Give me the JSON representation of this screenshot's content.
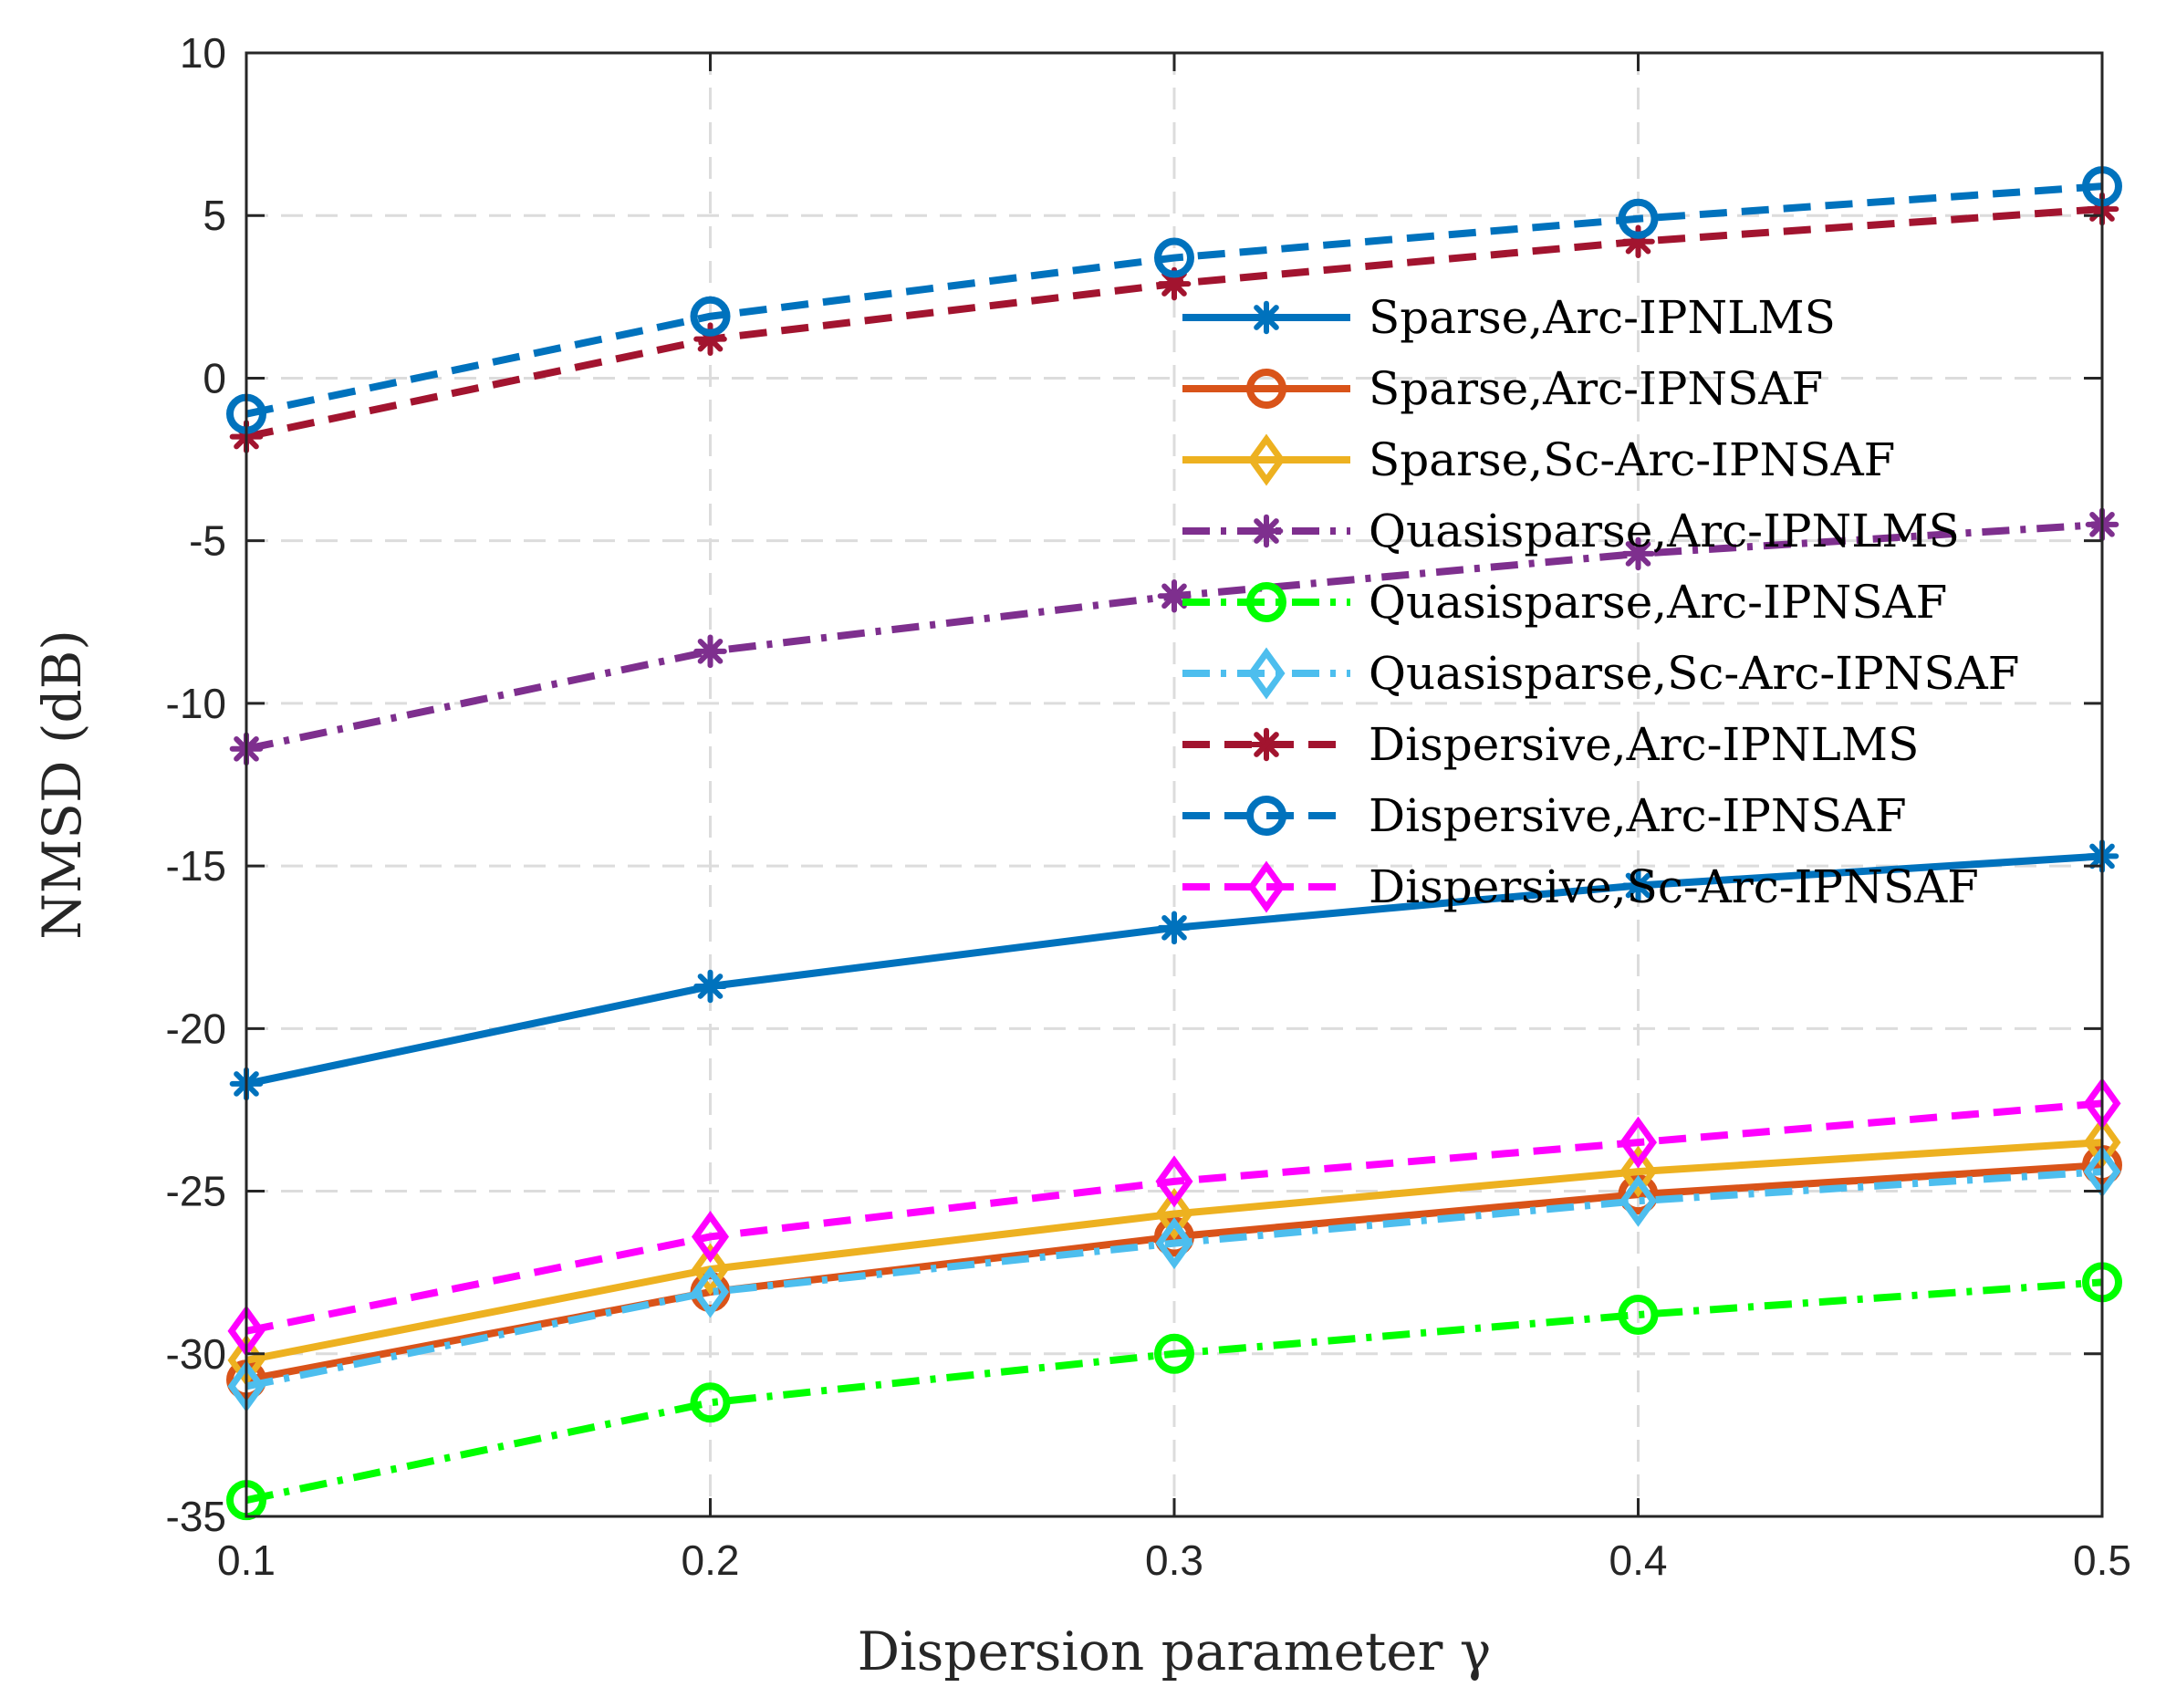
{
  "chart_data": {
    "type": "line",
    "title": "",
    "xlabel": "Dispersion parameter γ",
    "ylabel": "NMSD (dB)",
    "xlim": [
      0.1,
      0.5
    ],
    "ylim": [
      -35,
      10
    ],
    "x": [
      0.1,
      0.2,
      0.3,
      0.4,
      0.5
    ],
    "xticks": [
      "0.1",
      "0.2",
      "0.3",
      "0.4",
      "0.5"
    ],
    "yticks": [
      "10",
      "5",
      "0",
      "-5",
      "-10",
      "-15",
      "-20",
      "-25",
      "-30",
      "-35"
    ],
    "ytick_values": [
      10,
      5,
      0,
      -5,
      -10,
      -15,
      -20,
      -25,
      -30,
      -35
    ],
    "grid": true,
    "legend_position": "upper-right inside",
    "series": [
      {
        "name": "Sparse,Arc-IPNLMS",
        "color": "#0072BD",
        "line": "solid",
        "marker": "asterisk",
        "values": [
          -21.7,
          -18.7,
          -16.9,
          -15.6,
          -14.7
        ]
      },
      {
        "name": "Sparse,Arc-IPNSAF",
        "color": "#D95319",
        "line": "solid",
        "marker": "circle",
        "values": [
          -30.8,
          -28.1,
          -26.4,
          -25.1,
          -24.2
        ]
      },
      {
        "name": "Sparse,Sc-Arc-IPNSAF",
        "color": "#EDB120",
        "line": "solid",
        "marker": "diamond",
        "values": [
          -30.2,
          -27.4,
          -25.7,
          -24.4,
          -23.5
        ]
      },
      {
        "name": "Quasisparse,Arc-IPNLMS",
        "color": "#7E2F8E",
        "line": "dashdot",
        "marker": "asterisk",
        "values": [
          -11.4,
          -8.4,
          -6.7,
          -5.4,
          -4.5
        ]
      },
      {
        "name": "Quasisparse,Arc-IPNSAF",
        "color": "#00FF00",
        "line": "dashdot",
        "marker": "circle",
        "values": [
          -34.5,
          -31.5,
          -30.0,
          -28.8,
          -27.8
        ]
      },
      {
        "name": "Quasisparse,Sc-Arc-IPNSAF",
        "color": "#4DBEEE",
        "line": "dashdot",
        "marker": "diamond",
        "values": [
          -31.0,
          -28.1,
          -26.6,
          -25.3,
          -24.4
        ]
      },
      {
        "name": "Dispersive,Arc-IPNLMS",
        "color": "#A2142F",
        "line": "dashed",
        "marker": "asterisk",
        "values": [
          -1.8,
          1.2,
          2.9,
          4.2,
          5.2
        ]
      },
      {
        "name": "Dispersive,Arc-IPNSAF",
        "color": "#0072BD",
        "line": "dashed",
        "marker": "circle",
        "values": [
          -1.1,
          1.9,
          3.7,
          4.9,
          5.9
        ]
      },
      {
        "name": "Dispersive,Sc-Arc-IPNSAF",
        "color": "#FF00FF",
        "line": "dashed",
        "marker": "diamond",
        "values": [
          -29.3,
          -26.4,
          -24.7,
          -23.5,
          -22.3
        ]
      }
    ]
  }
}
